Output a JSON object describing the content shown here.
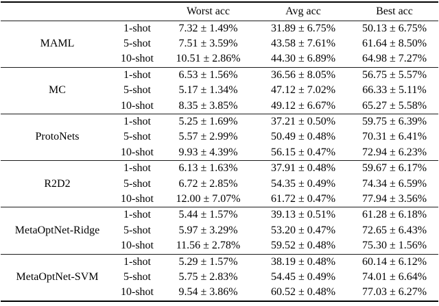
{
  "page": {
    "background_color": "#ffffff",
    "text_color": "#000000",
    "rule_color": "#000000"
  },
  "table": {
    "header": {
      "col_method": "",
      "col_shot": "",
      "col_worst": "Worst acc",
      "col_avg": "Avg acc",
      "col_best": "Best acc"
    },
    "groups": [
      {
        "method": "MAML",
        "rows": [
          {
            "shot": "1-shot",
            "worst": "7.32 ± 1.49%",
            "avg": "31.89 ± 6.75%",
            "best": "50.13 ± 6.75%"
          },
          {
            "shot": "5-shot",
            "worst": "7.51 ± 3.59%",
            "avg": "43.58 ± 7.61%",
            "best": "61.64 ± 8.50%"
          },
          {
            "shot": "10-shot",
            "worst": "10.51 ± 2.86%",
            "avg": "44.30 ± 6.89%",
            "best": "64.98 ± 7.27%"
          }
        ]
      },
      {
        "method": "MC",
        "rows": [
          {
            "shot": "1-shot",
            "worst": "6.53 ± 1.56%",
            "avg": "36.56 ± 8.05%",
            "best": "56.75 ± 5.57%"
          },
          {
            "shot": "5-shot",
            "worst": "5.17 ± 1.34%",
            "avg": "47.12 ± 7.02%",
            "best": "66.33 ± 5.11%"
          },
          {
            "shot": "10-shot",
            "worst": "8.35 ± 3.85%",
            "avg": "49.12 ± 6.67%",
            "best": "65.27 ± 5.58%"
          }
        ]
      },
      {
        "method": "ProtoNets",
        "rows": [
          {
            "shot": "1-shot",
            "worst": "5.25 ± 1.69%",
            "avg": "37.21 ± 0.50%",
            "best": "59.75 ± 6.39%"
          },
          {
            "shot": "5-shot",
            "worst": "5.57 ± 2.99%",
            "avg": "50.49 ± 0.48%",
            "best": "70.31 ± 6.41%"
          },
          {
            "shot": "10-shot",
            "worst": "9.93 ± 4.39%",
            "avg": "56.15 ± 0.47%",
            "best": "72.94 ± 6.23%"
          }
        ]
      },
      {
        "method": "R2D2",
        "rows": [
          {
            "shot": "1-shot",
            "worst": "6.13 ± 1.63%",
            "avg": "37.91 ± 0.48%",
            "best": "59.67 ± 6.17%"
          },
          {
            "shot": "5-shot",
            "worst": "6.72 ± 2.85%",
            "avg": "54.35 ± 0.49%",
            "best": "74.34 ± 6.59%"
          },
          {
            "shot": "10-shot",
            "worst": "12.00 ± 7.07%",
            "avg": "61.72 ± 0.47%",
            "best": "77.94 ± 3.56%"
          }
        ]
      },
      {
        "method": "MetaOptNet-Ridge",
        "rows": [
          {
            "shot": "1-shot",
            "worst": "5.44 ± 1.57%",
            "avg": "39.13 ± 0.51%",
            "best": "61.28 ± 6.18%"
          },
          {
            "shot": "5-shot",
            "worst": "5.97 ± 3.29%",
            "avg": "53.20 ± 0.47%",
            "best": "72.65 ± 6.43%"
          },
          {
            "shot": "10-shot",
            "worst": "11.56 ± 2.78%",
            "avg": "59.52 ± 0.48%",
            "best": "75.30 ± 1.56%"
          }
        ]
      },
      {
        "method": "MetaOptNet-SVM",
        "rows": [
          {
            "shot": "1-shot",
            "worst": "5.29 ± 1.57%",
            "avg": "38.19 ± 0.48%",
            "best": "60.14 ± 6.12%"
          },
          {
            "shot": "5-shot",
            "worst": "5.75 ± 2.83%",
            "avg": "54.45 ± 0.49%",
            "best": "74.01 ± 6.64%"
          },
          {
            "shot": "10-shot",
            "worst": "9.54 ± 3.86%",
            "avg": "60.52 ± 0.48%",
            "best": "77.03 ± 6.27%"
          }
        ]
      }
    ]
  }
}
